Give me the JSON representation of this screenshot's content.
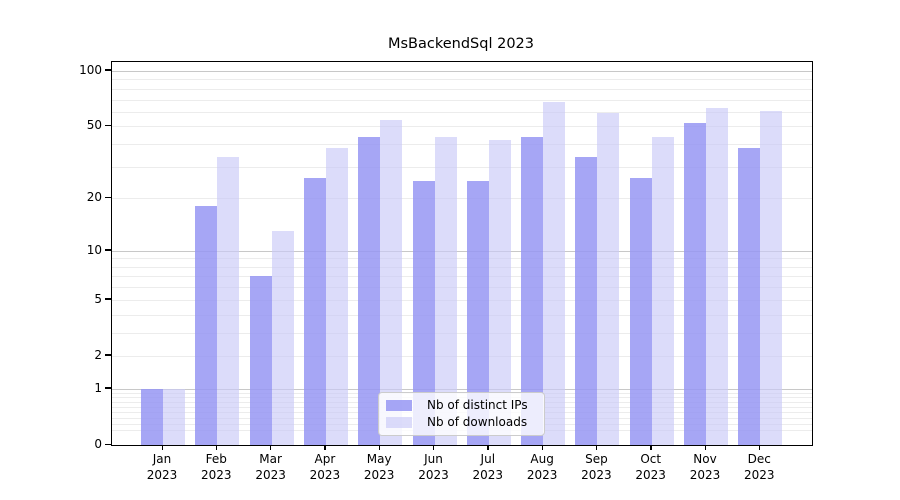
{
  "chart_data": {
    "type": "bar",
    "title": "MsBackendSql 2023",
    "categories": [
      "Jan",
      "Feb",
      "Mar",
      "Apr",
      "May",
      "Jun",
      "Jul",
      "Aug",
      "Sep",
      "Oct",
      "Nov",
      "Dec"
    ],
    "year": "2023",
    "series": [
      {
        "name": "Nb of distinct IPs",
        "color": "rgba(151,151,243,0.85)",
        "values": [
          1,
          18,
          7,
          26,
          44,
          25,
          25,
          44,
          34,
          26,
          52,
          38
        ]
      },
      {
        "name": "Nb of downloads",
        "color": "rgba(201,201,247,0.65)",
        "values": [
          1,
          34,
          13,
          38,
          54,
          44,
          42,
          68,
          59,
          44,
          63,
          61
        ]
      }
    ],
    "yscale": "log1p",
    "yticks": [
      0,
      1,
      2,
      5,
      10,
      20,
      50,
      100
    ],
    "ylim": [
      0,
      112
    ],
    "grid": "on",
    "legend_position": "lower center"
  },
  "colors": {
    "grid_major": "#c8c8c8",
    "grid_minor": "#ececec",
    "spine": "#000000",
    "legend_bg": "rgba(255,255,255,0.8)",
    "legend_border": "#cccccc"
  }
}
